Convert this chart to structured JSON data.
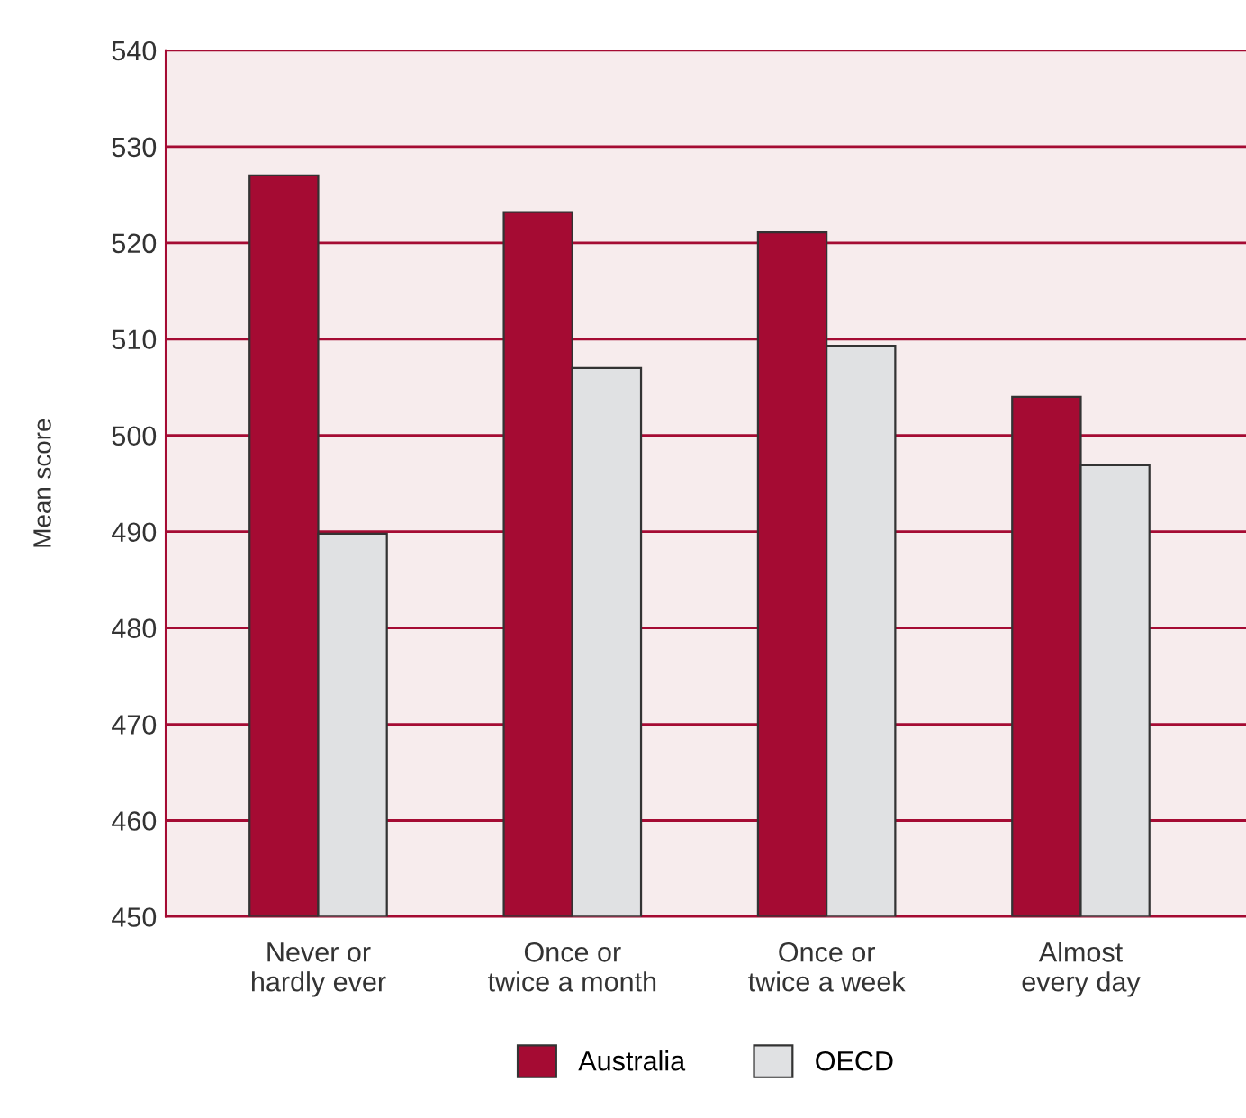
{
  "chart_data": {
    "type": "bar",
    "ylabel": "Mean score",
    "categories": [
      "Never or\nhardly ever",
      "Once or\ntwice a month",
      "Once or\ntwice a week",
      "Almost\nevery day"
    ],
    "series": [
      {
        "name": "Australia",
        "color": "#a50b33",
        "values": [
          527.0,
          523.2,
          521.1,
          504.0
        ]
      },
      {
        "name": "OECD",
        "color": "#e0e1e3",
        "values": [
          489.8,
          507.0,
          509.3,
          496.9
        ]
      }
    ],
    "ylim": [
      450,
      540
    ],
    "yticks": [
      450,
      460,
      470,
      480,
      490,
      500,
      510,
      520,
      530,
      540
    ],
    "grid": "y",
    "legend": "bottom"
  }
}
